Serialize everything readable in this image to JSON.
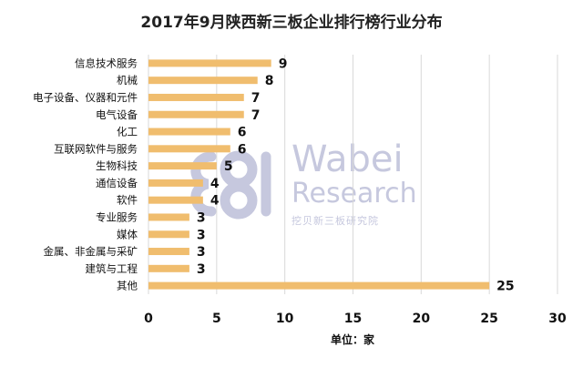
{
  "chart_data": {
    "type": "bar",
    "orientation": "horizontal",
    "title": "2017年9月陕西新三板企业排行榜行业分布",
    "categories": [
      "信息技术服务",
      "机械",
      "电子设备、仪器和元件",
      "电气设备",
      "化工",
      "互联网软件与服务",
      "生物科技",
      "通信设备",
      "软件",
      "专业服务",
      "媒体",
      "金属、非金属与采矿",
      "建筑与工程",
      "其他"
    ],
    "values": [
      9,
      8,
      7,
      7,
      6,
      6,
      5,
      4,
      4,
      3,
      3,
      3,
      3,
      25
    ],
    "xlabel": "单位：家",
    "xlim": [
      0,
      30
    ],
    "xticks": [
      0,
      5,
      10,
      15,
      20,
      25,
      30
    ],
    "grid": true,
    "bar_color": "#f0bd6e",
    "grid_color": "#d9d9d9"
  },
  "watermark": {
    "logo_name": "Wabei",
    "logo_subtitle": "Research",
    "logo_caption": "挖贝新三板研究院",
    "color": "#c6c8de"
  }
}
